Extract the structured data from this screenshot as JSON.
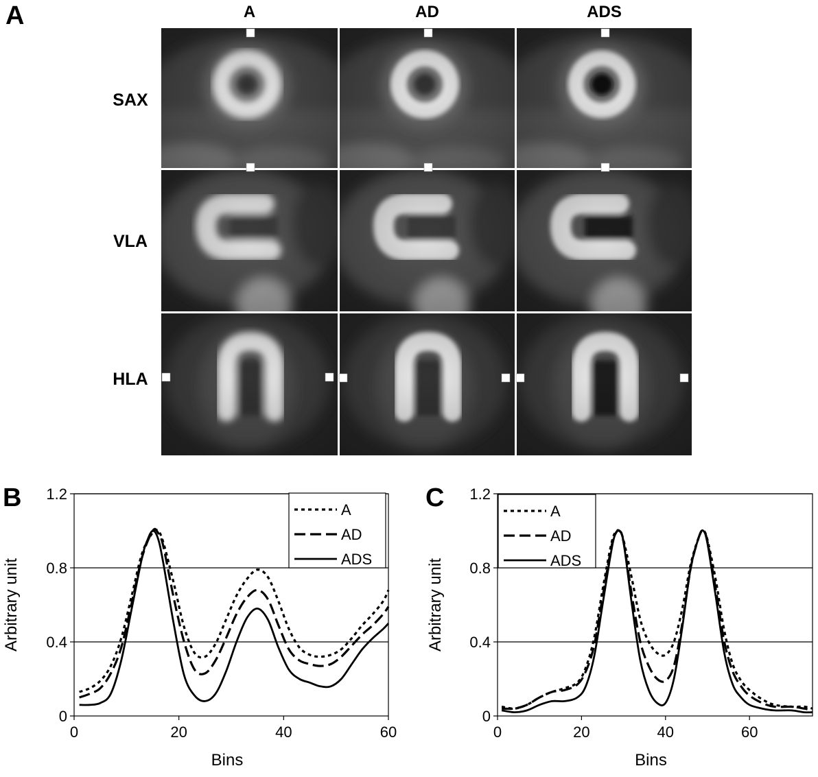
{
  "panel_a": {
    "letter": "A",
    "columns": [
      "A",
      "AD",
      "ADS"
    ],
    "rows": [
      "SAX",
      "VLA",
      "HLA"
    ]
  },
  "chart_data": [
    {
      "panel": "B",
      "type": "line",
      "xlabel": "Bins",
      "ylabel": "Arbitrary unit",
      "xlim": [
        0,
        60
      ],
      "ylim": [
        0,
        1.2
      ],
      "xticks": [
        0,
        20,
        40,
        60
      ],
      "yticks": [
        "0",
        "0.4",
        "0.8",
        "1.2"
      ],
      "grid": "horizontal",
      "legend": "top-right",
      "series": [
        {
          "name": "A",
          "style": "dotted",
          "points": [
            [
              1,
              0.13
            ],
            [
              3,
              0.15
            ],
            [
              5,
              0.19
            ],
            [
              7,
              0.27
            ],
            [
              9,
              0.42
            ],
            [
              11,
              0.65
            ],
            [
              13,
              0.88
            ],
            [
              15,
              0.99
            ],
            [
              16,
              1.0
            ],
            [
              17,
              0.94
            ],
            [
              19,
              0.72
            ],
            [
              21,
              0.48
            ],
            [
              23,
              0.34
            ],
            [
              25,
              0.32
            ],
            [
              27,
              0.39
            ],
            [
              29,
              0.52
            ],
            [
              31,
              0.65
            ],
            [
              33,
              0.74
            ],
            [
              35,
              0.79
            ],
            [
              37,
              0.75
            ],
            [
              39,
              0.62
            ],
            [
              41,
              0.47
            ],
            [
              43,
              0.37
            ],
            [
              45,
              0.33
            ],
            [
              47,
              0.32
            ],
            [
              49,
              0.33
            ],
            [
              51,
              0.36
            ],
            [
              53,
              0.42
            ],
            [
              55,
              0.49
            ],
            [
              57,
              0.55
            ],
            [
              59,
              0.62
            ],
            [
              60,
              0.68
            ]
          ]
        },
        {
          "name": "AD",
          "style": "dashed",
          "points": [
            [
              1,
              0.1
            ],
            [
              3,
              0.12
            ],
            [
              5,
              0.15
            ],
            [
              7,
              0.23
            ],
            [
              9,
              0.37
            ],
            [
              11,
              0.61
            ],
            [
              13,
              0.86
            ],
            [
              15,
              1.0
            ],
            [
              16,
              0.99
            ],
            [
              17,
              0.92
            ],
            [
              19,
              0.64
            ],
            [
              21,
              0.4
            ],
            [
              23,
              0.25
            ],
            [
              25,
              0.23
            ],
            [
              27,
              0.3
            ],
            [
              29,
              0.42
            ],
            [
              31,
              0.55
            ],
            [
              33,
              0.64
            ],
            [
              35,
              0.68
            ],
            [
              37,
              0.63
            ],
            [
              39,
              0.49
            ],
            [
              41,
              0.36
            ],
            [
              43,
              0.3
            ],
            [
              45,
              0.28
            ],
            [
              47,
              0.27
            ],
            [
              49,
              0.28
            ],
            [
              51,
              0.32
            ],
            [
              53,
              0.38
            ],
            [
              55,
              0.44
            ],
            [
              57,
              0.49
            ],
            [
              59,
              0.55
            ],
            [
              60,
              0.59
            ]
          ]
        },
        {
          "name": "ADS",
          "style": "solid",
          "points": [
            [
              1,
              0.06
            ],
            [
              3,
              0.06
            ],
            [
              5,
              0.07
            ],
            [
              7,
              0.12
            ],
            [
              9,
              0.3
            ],
            [
              11,
              0.58
            ],
            [
              13,
              0.86
            ],
            [
              14,
              0.95
            ],
            [
              15,
              1.0
            ],
            [
              16,
              0.96
            ],
            [
              17,
              0.83
            ],
            [
              19,
              0.5
            ],
            [
              21,
              0.22
            ],
            [
              23,
              0.11
            ],
            [
              25,
              0.08
            ],
            [
              27,
              0.12
            ],
            [
              29,
              0.24
            ],
            [
              31,
              0.4
            ],
            [
              33,
              0.53
            ],
            [
              35,
              0.58
            ],
            [
              37,
              0.52
            ],
            [
              39,
              0.37
            ],
            [
              41,
              0.25
            ],
            [
              43,
              0.2
            ],
            [
              45,
              0.18
            ],
            [
              47,
              0.16
            ],
            [
              49,
              0.16
            ],
            [
              51,
              0.2
            ],
            [
              53,
              0.28
            ],
            [
              55,
              0.36
            ],
            [
              57,
              0.42
            ],
            [
              59,
              0.47
            ],
            [
              60,
              0.5
            ]
          ]
        }
      ]
    },
    {
      "panel": "C",
      "type": "line",
      "xlabel": "Bins",
      "ylabel": "Arbitrary unit",
      "xlim": [
        0,
        75
      ],
      "ylim": [
        0,
        1.2
      ],
      "xticks": [
        0,
        20,
        40,
        60
      ],
      "yticks": [
        "0",
        "0.4",
        "0.8",
        "1.2"
      ],
      "grid": "horizontal",
      "legend": "top-left",
      "series": [
        {
          "name": "A",
          "style": "dotted",
          "points": [
            [
              1,
              0.05
            ],
            [
              4,
              0.04
            ],
            [
              7,
              0.06
            ],
            [
              10,
              0.1
            ],
            [
              13,
              0.13
            ],
            [
              16,
              0.15
            ],
            [
              19,
              0.18
            ],
            [
              21,
              0.26
            ],
            [
              23,
              0.42
            ],
            [
              25,
              0.68
            ],
            [
              27,
              0.92
            ],
            [
              28,
              0.99
            ],
            [
              29,
              1.0
            ],
            [
              30,
              0.95
            ],
            [
              32,
              0.74
            ],
            [
              34,
              0.52
            ],
            [
              36,
              0.4
            ],
            [
              38,
              0.34
            ],
            [
              40,
              0.33
            ],
            [
              42,
              0.4
            ],
            [
              44,
              0.58
            ],
            [
              46,
              0.82
            ],
            [
              48,
              0.97
            ],
            [
              49,
              1.0
            ],
            [
              50,
              0.95
            ],
            [
              52,
              0.73
            ],
            [
              54,
              0.46
            ],
            [
              56,
              0.28
            ],
            [
              58,
              0.19
            ],
            [
              60,
              0.14
            ],
            [
              63,
              0.09
            ],
            [
              66,
              0.06
            ],
            [
              70,
              0.05
            ],
            [
              73,
              0.05
            ],
            [
              75,
              0.04
            ]
          ]
        },
        {
          "name": "AD",
          "style": "dashed",
          "points": [
            [
              1,
              0.04
            ],
            [
              4,
              0.04
            ],
            [
              7,
              0.06
            ],
            [
              10,
              0.1
            ],
            [
              13,
              0.13
            ],
            [
              16,
              0.14
            ],
            [
              19,
              0.17
            ],
            [
              21,
              0.24
            ],
            [
              23,
              0.38
            ],
            [
              25,
              0.64
            ],
            [
              27,
              0.9
            ],
            [
              28,
              0.98
            ],
            [
              29,
              1.0
            ],
            [
              30,
              0.94
            ],
            [
              32,
              0.65
            ],
            [
              34,
              0.4
            ],
            [
              36,
              0.27
            ],
            [
              38,
              0.2
            ],
            [
              40,
              0.19
            ],
            [
              42,
              0.27
            ],
            [
              44,
              0.5
            ],
            [
              46,
              0.8
            ],
            [
              48,
              0.97
            ],
            [
              49,
              1.0
            ],
            [
              50,
              0.94
            ],
            [
              52,
              0.68
            ],
            [
              54,
              0.4
            ],
            [
              56,
              0.24
            ],
            [
              58,
              0.16
            ],
            [
              60,
              0.11
            ],
            [
              63,
              0.07
            ],
            [
              66,
              0.05
            ],
            [
              70,
              0.05
            ],
            [
              73,
              0.04
            ],
            [
              75,
              0.03
            ]
          ]
        },
        {
          "name": "ADS",
          "style": "solid",
          "points": [
            [
              1,
              0.03
            ],
            [
              4,
              0.02
            ],
            [
              7,
              0.03
            ],
            [
              10,
              0.06
            ],
            [
              13,
              0.08
            ],
            [
              16,
              0.08
            ],
            [
              19,
              0.1
            ],
            [
              21,
              0.16
            ],
            [
              23,
              0.32
            ],
            [
              25,
              0.6
            ],
            [
              27,
              0.88
            ],
            [
              28,
              0.98
            ],
            [
              29,
              1.0
            ],
            [
              30,
              0.94
            ],
            [
              32,
              0.6
            ],
            [
              34,
              0.3
            ],
            [
              36,
              0.14
            ],
            [
              38,
              0.07
            ],
            [
              40,
              0.07
            ],
            [
              42,
              0.2
            ],
            [
              44,
              0.48
            ],
            [
              46,
              0.8
            ],
            [
              48,
              0.97
            ],
            [
              49,
              1.0
            ],
            [
              50,
              0.93
            ],
            [
              52,
              0.64
            ],
            [
              54,
              0.34
            ],
            [
              56,
              0.17
            ],
            [
              58,
              0.1
            ],
            [
              60,
              0.06
            ],
            [
              63,
              0.04
            ],
            [
              66,
              0.03
            ],
            [
              70,
              0.03
            ],
            [
              73,
              0.02
            ],
            [
              75,
              0.02
            ]
          ]
        }
      ]
    }
  ]
}
